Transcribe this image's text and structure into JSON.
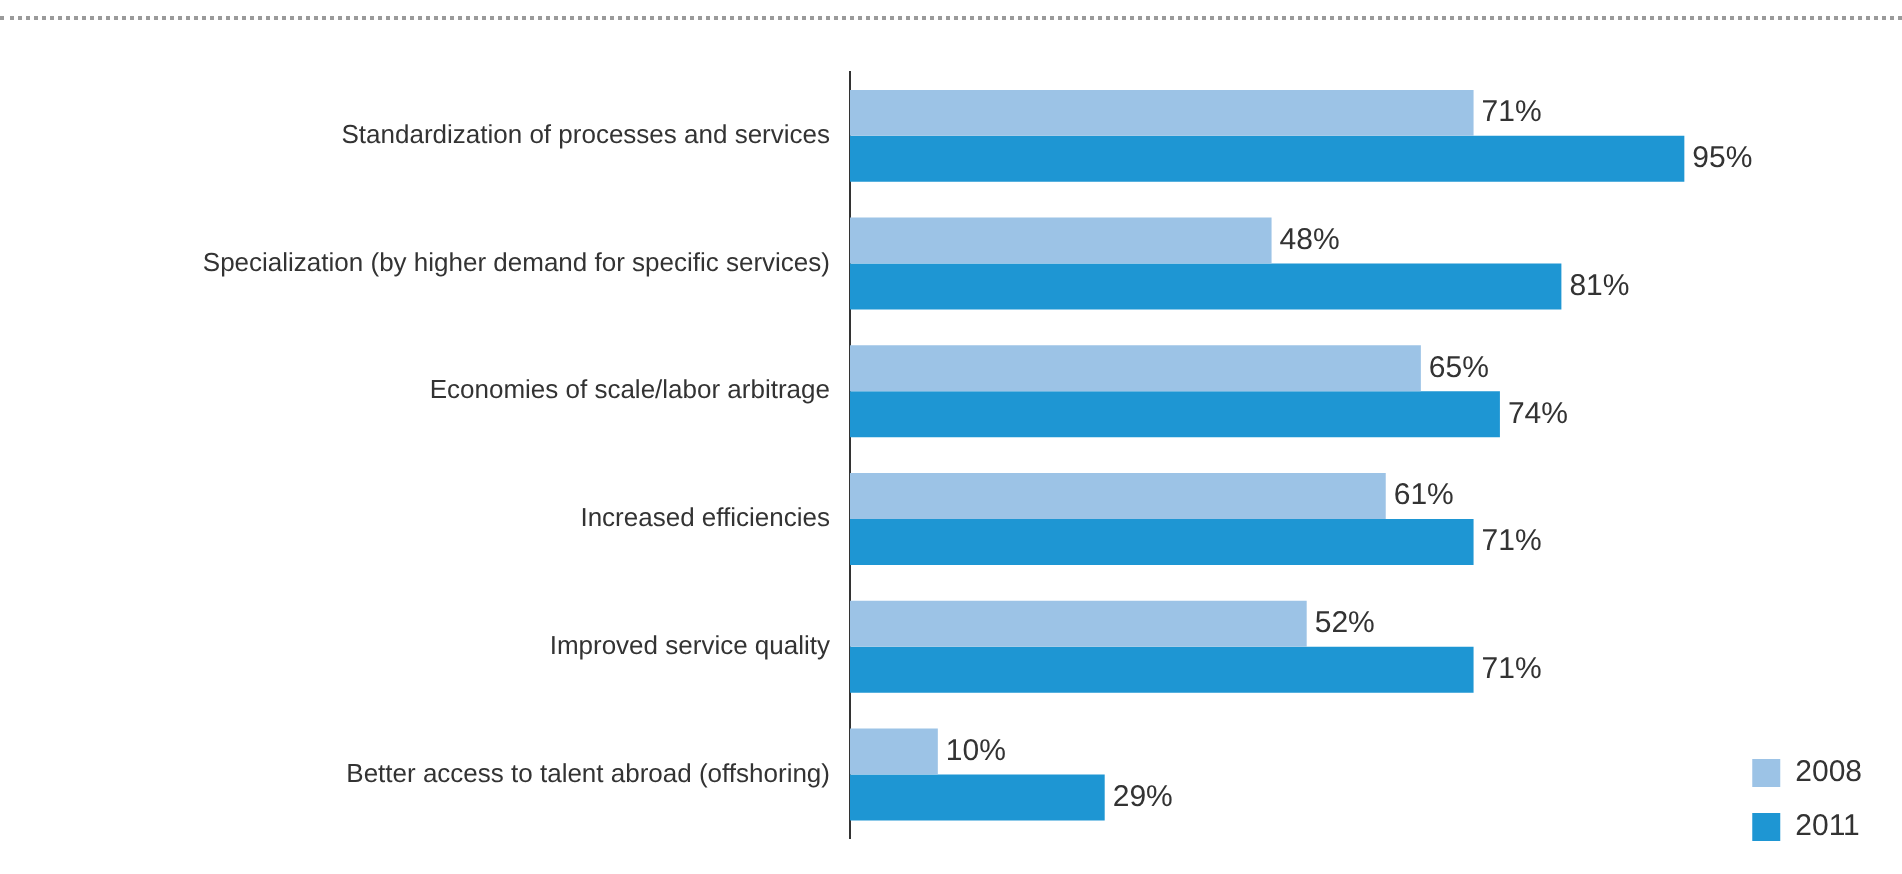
{
  "chart_data": {
    "type": "bar",
    "orientation": "horizontal",
    "categories": [
      "Standardization of processes and services",
      "Specialization (by higher demand for specific services)",
      "Economies of scale/labor arbitrage",
      "Increased efficiencies",
      "Improved service quality",
      "Better access to talent abroad (offshoring)"
    ],
    "series": [
      {
        "name": "2008",
        "color": "#9cc3e6",
        "values": [
          71,
          48,
          65,
          61,
          52,
          10
        ],
        "value_labels": [
          "71%",
          "48%",
          "65%",
          "61%",
          "52%",
          "10%"
        ]
      },
      {
        "name": "2011",
        "color": "#1e96d3",
        "values": [
          95,
          81,
          74,
          71,
          71,
          29
        ],
        "value_labels": [
          "95%",
          "81%",
          "74%",
          "71%",
          "71%",
          "29%"
        ]
      }
    ],
    "tick_labels": "y",
    "legend": "bottom right"
  }
}
